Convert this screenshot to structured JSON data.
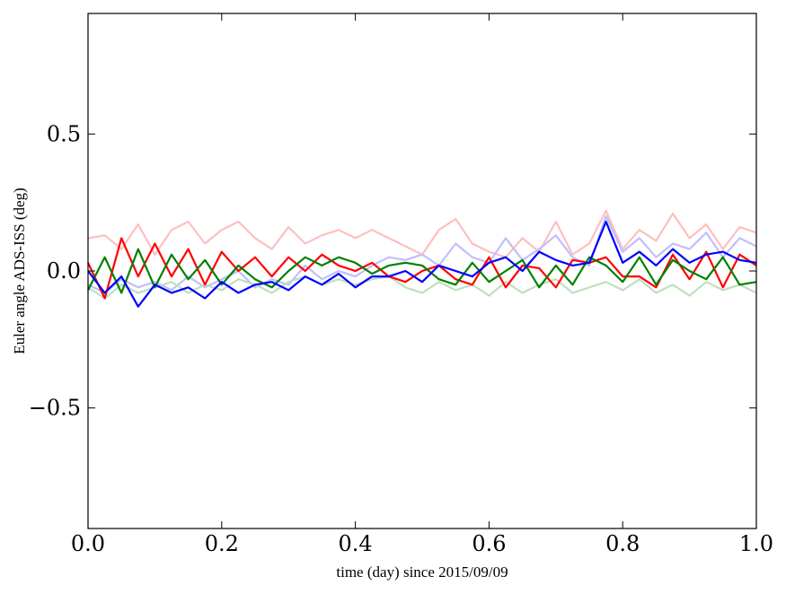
{
  "chart_data": {
    "type": "line",
    "title": "",
    "xlabel": "time (day) since 2015/09/09",
    "ylabel": "Euler angle ADS-ISS (deg)",
    "xlim": [
      0.0,
      1.0
    ],
    "ylim": [
      -0.94,
      0.94
    ],
    "xticks": [
      0.0,
      0.2,
      0.4,
      0.6,
      0.8,
      1.0
    ],
    "xtick_labels": [
      "0.0",
      "0.2",
      "0.4",
      "0.6",
      "0.8",
      "1.0"
    ],
    "yticks": [
      -0.5,
      0.0,
      0.5
    ],
    "ytick_labels": [
      "−0.5",
      "0.0",
      "0.5"
    ],
    "grid": false,
    "x_step": 0.025,
    "series": [
      {
        "name": "light-red",
        "color": "#ffbfbf",
        "values": [
          0.12,
          0.13,
          0.08,
          0.17,
          0.06,
          0.15,
          0.18,
          0.1,
          0.15,
          0.18,
          0.12,
          0.08,
          0.16,
          0.1,
          0.13,
          0.15,
          0.12,
          0.15,
          0.12,
          0.09,
          0.06,
          0.15,
          0.19,
          0.1,
          0.07,
          0.05,
          0.12,
          0.07,
          0.18,
          0.06,
          0.1,
          0.22,
          0.08,
          0.15,
          0.11,
          0.21,
          0.12,
          0.17,
          0.08,
          0.16,
          0.14
        ]
      },
      {
        "name": "light-blue",
        "color": "#bfbfff",
        "values": [
          -0.05,
          -0.08,
          -0.03,
          -0.06,
          -0.04,
          -0.07,
          -0.02,
          -0.06,
          -0.03,
          0.0,
          -0.06,
          -0.03,
          -0.05,
          0.02,
          -0.03,
          0.0,
          -0.02,
          0.02,
          0.05,
          0.04,
          0.06,
          0.02,
          0.1,
          0.05,
          0.03,
          0.12,
          0.04,
          0.08,
          0.13,
          0.05,
          0.02,
          0.2,
          0.07,
          0.12,
          0.05,
          0.1,
          0.08,
          0.14,
          0.05,
          0.12,
          0.09
        ]
      },
      {
        "name": "light-green",
        "color": "#bfdfbf",
        "values": [
          -0.06,
          -0.1,
          -0.05,
          -0.08,
          -0.06,
          -0.04,
          -0.08,
          -0.05,
          -0.07,
          -0.03,
          -0.05,
          -0.08,
          -0.04,
          -0.02,
          -0.05,
          -0.03,
          -0.05,
          -0.03,
          -0.02,
          -0.06,
          -0.08,
          -0.04,
          -0.07,
          -0.05,
          -0.09,
          -0.04,
          -0.08,
          -0.05,
          -0.03,
          -0.08,
          -0.06,
          -0.04,
          -0.07,
          -0.03,
          -0.08,
          -0.05,
          -0.09,
          -0.04,
          -0.07,
          -0.05,
          -0.08
        ]
      },
      {
        "name": "red",
        "color": "#ff0000",
        "values": [
          0.03,
          -0.1,
          0.12,
          -0.02,
          0.1,
          -0.02,
          0.08,
          -0.05,
          0.07,
          0.0,
          0.05,
          -0.02,
          0.05,
          0.0,
          0.06,
          0.02,
          0.0,
          0.03,
          -0.02,
          -0.04,
          0.0,
          0.02,
          -0.03,
          -0.05,
          0.05,
          -0.06,
          0.02,
          0.01,
          -0.06,
          0.04,
          0.03,
          0.05,
          -0.02,
          -0.02,
          -0.06,
          0.06,
          -0.03,
          0.07,
          -0.06,
          0.06,
          0.02
        ]
      },
      {
        "name": "green",
        "color": "#008000",
        "values": [
          -0.07,
          0.05,
          -0.08,
          0.08,
          -0.06,
          0.06,
          -0.03,
          0.04,
          -0.05,
          0.02,
          -0.03,
          -0.06,
          0.0,
          0.05,
          0.02,
          0.05,
          0.03,
          -0.01,
          0.02,
          0.03,
          0.02,
          -0.03,
          -0.05,
          0.03,
          -0.04,
          0.0,
          0.04,
          -0.06,
          0.02,
          -0.05,
          0.05,
          0.02,
          -0.04,
          0.05,
          -0.05,
          0.04,
          0.0,
          -0.03,
          0.05,
          -0.05,
          -0.04
        ]
      },
      {
        "name": "blue",
        "color": "#0000ff",
        "values": [
          0.0,
          -0.08,
          -0.02,
          -0.13,
          -0.05,
          -0.08,
          -0.06,
          -0.1,
          -0.04,
          -0.08,
          -0.05,
          -0.04,
          -0.07,
          -0.02,
          -0.05,
          -0.01,
          -0.06,
          -0.02,
          -0.02,
          0.0,
          -0.04,
          0.02,
          0.0,
          -0.02,
          0.03,
          0.05,
          0.0,
          0.07,
          0.04,
          0.02,
          0.03,
          0.18,
          0.03,
          0.07,
          0.02,
          0.08,
          0.03,
          0.06,
          0.07,
          0.04,
          0.03
        ]
      }
    ]
  }
}
